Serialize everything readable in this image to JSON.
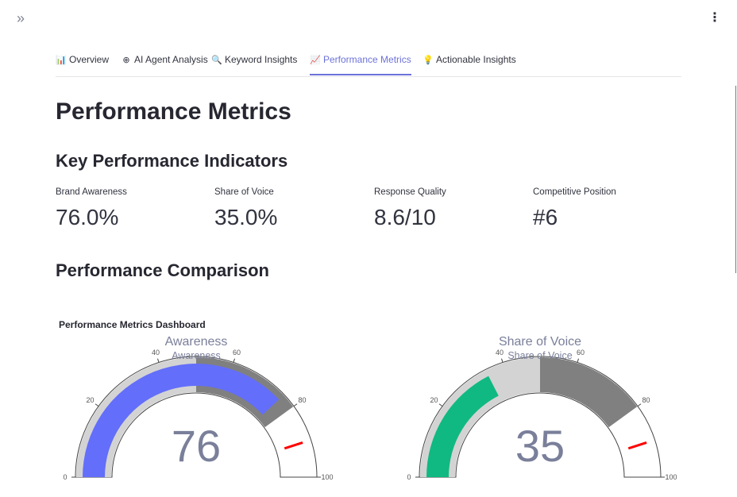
{
  "header": {
    "expand_icon": "double-chevron-right-icon",
    "expand_glyph": "»",
    "menu_icon": "kebab-menu-icon",
    "menu_glyph": "⋮"
  },
  "tabs": [
    {
      "icon": "bar-chart-icon",
      "glyph": "📊",
      "label": "Overview"
    },
    {
      "icon": "agent-icon",
      "glyph": "⊕",
      "label": "AI Agent Analysis"
    },
    {
      "icon": "magnifier-icon",
      "glyph": "🔍",
      "label": "Keyword Insights"
    },
    {
      "icon": "chart-increasing-icon",
      "glyph": "📈",
      "label": "Performance Metrics"
    },
    {
      "icon": "lightbulb-icon",
      "glyph": "💡",
      "label": "Actionable Insights"
    }
  ],
  "page": {
    "title": "Performance Metrics",
    "kpi_heading": "Key Performance Indicators",
    "comparison_heading": "Performance Comparison"
  },
  "kpis": [
    {
      "label": "Brand Awareness",
      "value": "76.0%"
    },
    {
      "label": "Share of Voice",
      "value": "35.0%"
    },
    {
      "label": "Response Quality",
      "value": "8.6/10"
    },
    {
      "label": "Competitive Position",
      "value": "#6"
    }
  ],
  "colors": {
    "accent": "#6c72d8",
    "awareness_bar": "#636efa",
    "sov_bar": "#10b981",
    "band_light": "#d3d3d3",
    "band_dark": "#808080",
    "threshold": "#ff0000",
    "gauge_text": "#7a7f9a"
  },
  "chart_data": {
    "type": "gauge",
    "title": "Performance Metrics Dashboard",
    "gauges": [
      {
        "subplot_title": "Awareness",
        "title": "Awareness",
        "value": 76,
        "range": [
          0,
          100
        ],
        "ticks": [
          "0",
          "20",
          "40",
          "60",
          "80",
          "100"
        ],
        "steps": [
          {
            "range": [
              0,
              50
            ],
            "color": "light"
          },
          {
            "range": [
              50,
              80
            ],
            "color": "dark"
          }
        ],
        "threshold": 90
      },
      {
        "subplot_title": "Share of Voice",
        "title": "Share of Voice",
        "value": 35,
        "range": [
          0,
          100
        ],
        "ticks": [
          "0",
          "20",
          "40",
          "60",
          "80",
          "100"
        ],
        "steps": [
          {
            "range": [
              0,
              50
            ],
            "color": "light"
          },
          {
            "range": [
              50,
              80
            ],
            "color": "dark"
          }
        ],
        "threshold": 90
      }
    ]
  }
}
